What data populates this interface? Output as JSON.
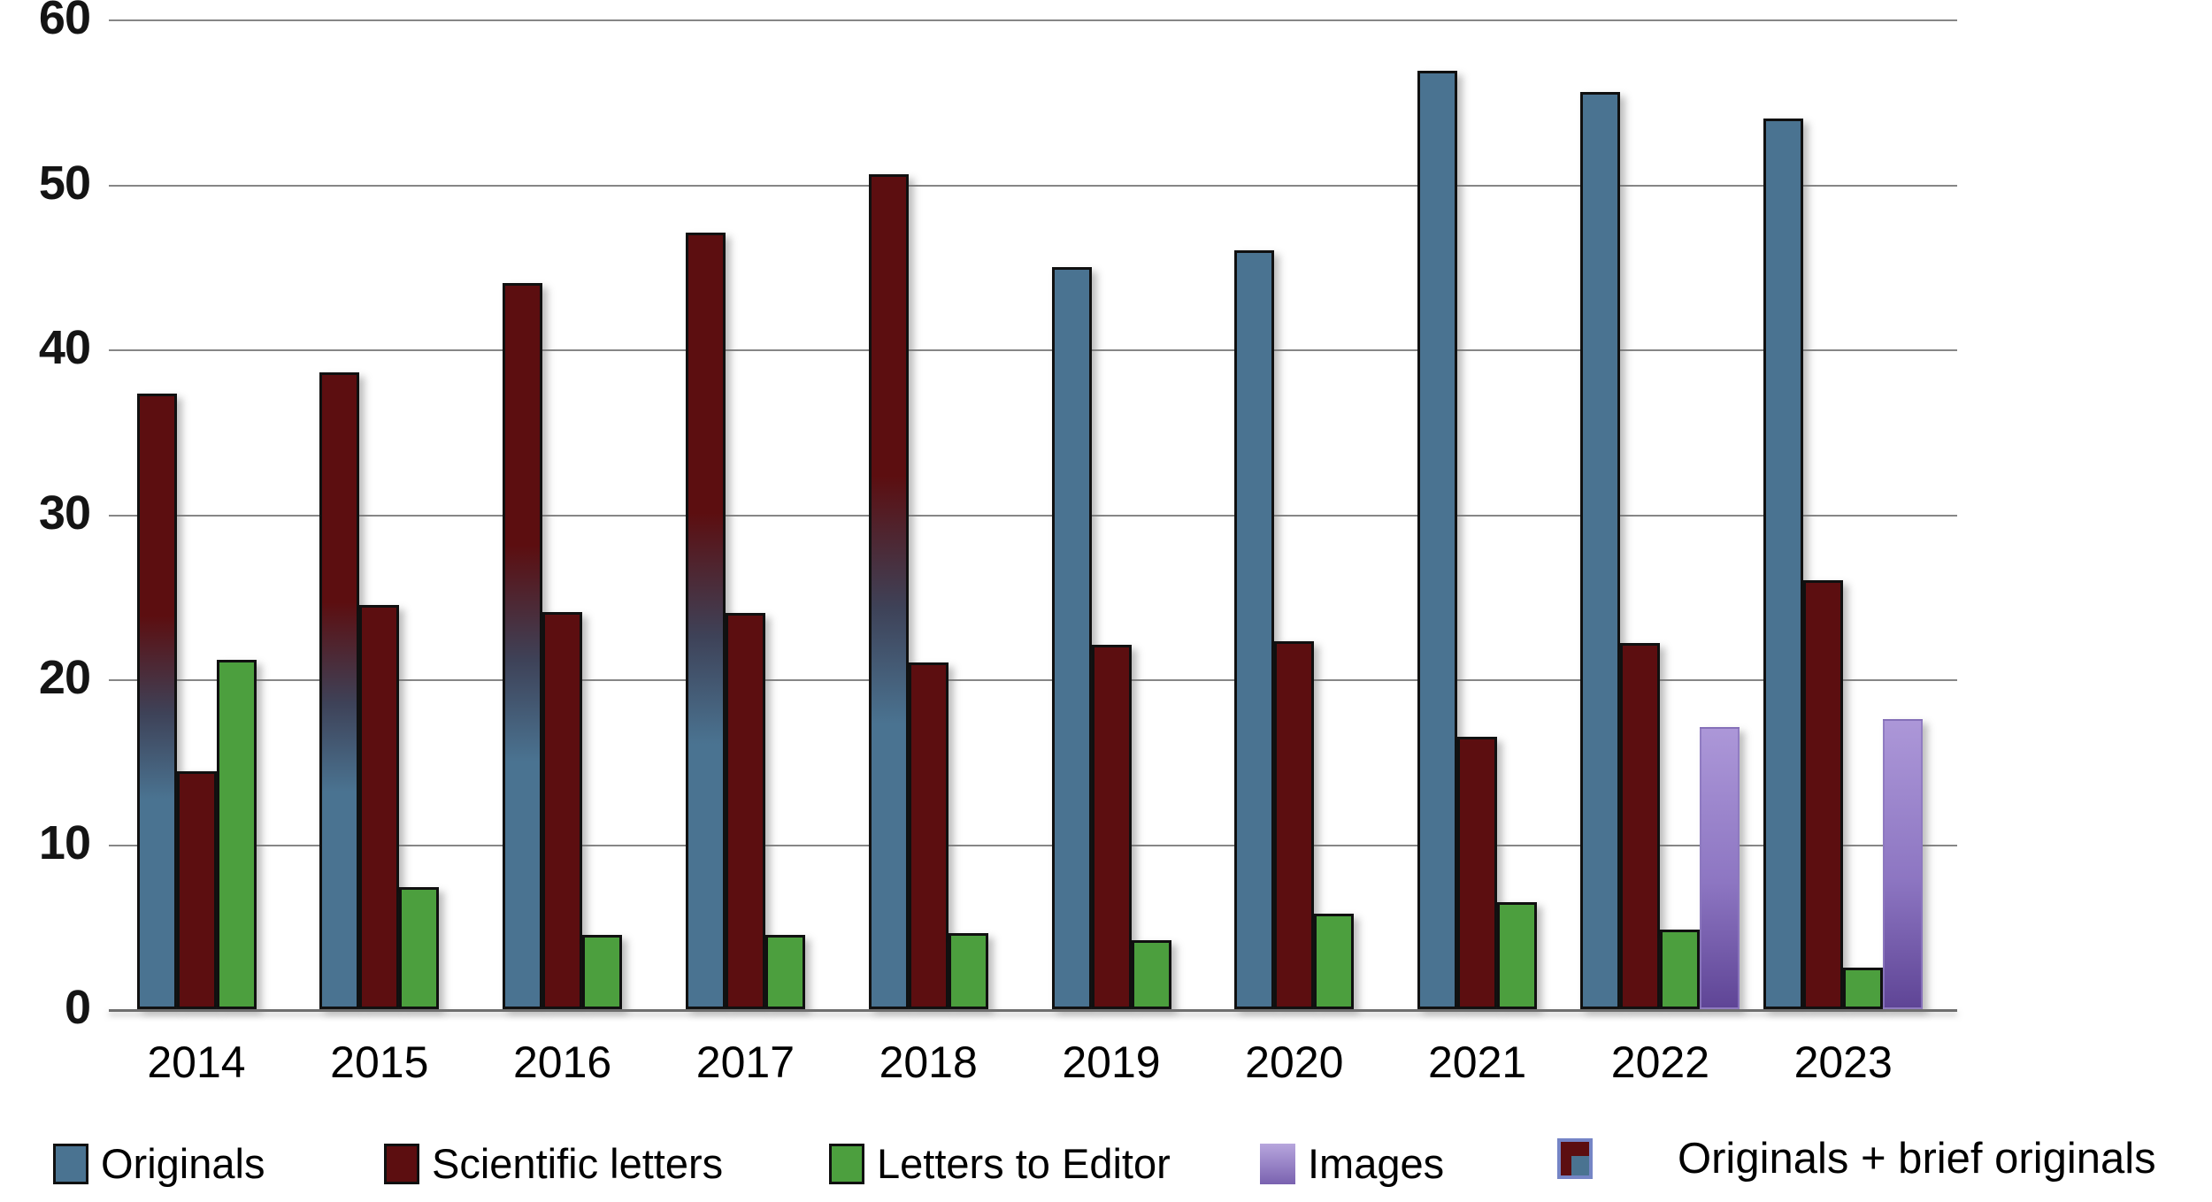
{
  "chart_data": {
    "type": "bar",
    "title": "",
    "xlabel": "",
    "ylabel": "",
    "categories": [
      "2014",
      "2015",
      "2016",
      "2017",
      "2018",
      "2019",
      "2020",
      "2021",
      "2022",
      "2023"
    ],
    "y_ticks": [
      "0",
      "10",
      "20",
      "30",
      "40",
      "50",
      "60"
    ],
    "ylim": [
      0,
      60
    ],
    "ytick_step": 10,
    "grid": true,
    "legend_position": "bottom",
    "series": [
      {
        "name": "Originals",
        "type": "solid",
        "color": "#4A7391",
        "values": [
          null,
          null,
          null,
          null,
          null,
          45.0,
          46.0,
          56.9,
          55.6,
          54.0
        ]
      },
      {
        "name": "Scientific letters",
        "type": "solid",
        "color": "#5C0E10",
        "values": [
          14.4,
          24.5,
          24.1,
          24.0,
          21.0,
          22.1,
          22.3,
          16.5,
          22.2,
          26.0
        ]
      },
      {
        "name": "Letters to Editor",
        "type": "solid",
        "color": "#4C9F3E",
        "values": [
          21.2,
          7.4,
          4.5,
          4.5,
          4.6,
          4.2,
          5.8,
          6.5,
          4.8,
          2.5
        ]
      },
      {
        "name": "Images",
        "type": "purple-gradient",
        "color_top": "#AC97D8",
        "color_mid": "#8D76C2",
        "color_bottom": "#5F4596",
        "values": [
          null,
          null,
          null,
          null,
          null,
          null,
          null,
          null,
          17.1,
          17.6
        ]
      },
      {
        "name": "Originals + brief originals",
        "type": "combo-gradient",
        "color_top": "#5C0E10",
        "color_blend": "#3E4258",
        "color_bottom": "#4A7391",
        "values": [
          37.3,
          38.6,
          44.0,
          47.1,
          50.6,
          null,
          null,
          null,
          null,
          null
        ]
      }
    ],
    "legend_items": [
      {
        "label": "Originals",
        "swatch": "solid",
        "color": "#4A7391"
      },
      {
        "label": "Scientific letters",
        "swatch": "solid",
        "color": "#5C0E10"
      },
      {
        "label": "Letters to Editor",
        "swatch": "solid",
        "color": "#4C9F3E"
      },
      {
        "label": "Images",
        "swatch": "purple-gradient",
        "color_top": "#B7A6DD",
        "color_bottom": "#7A62B0"
      },
      {
        "label": "Originals + brief originals",
        "swatch": "combo",
        "color_main": "#5C0E10",
        "color_corner": "#4A7391"
      }
    ],
    "colors": {
      "gridline": "#868686",
      "axis_text": "#141414"
    }
  }
}
